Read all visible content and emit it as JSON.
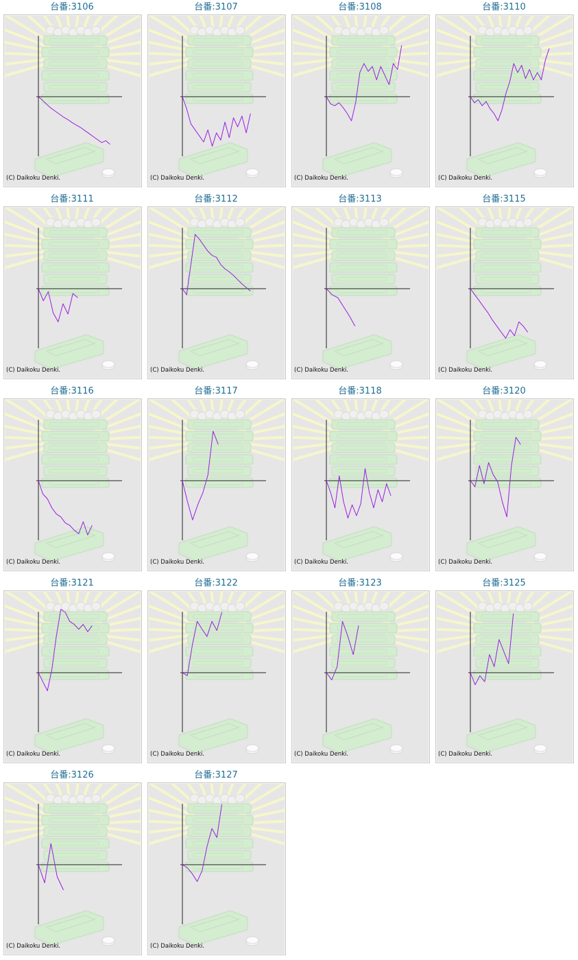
{
  "page": {
    "title_prefix": "台番:",
    "copyright": "(C) Daikoku Denki."
  },
  "colors": {
    "title_link": "#1f6d94",
    "series_line": "#9a1ee0",
    "panel_background": "#e6e6e6",
    "watermark_green": "#d4ecd0",
    "sunburst_yellow": "#f6f6cc",
    "axis_line": "#222222"
  },
  "icons": [
    "coin-stack-watermark-icon",
    "medal-tray-watermark-icon",
    "sunburst-watermark-icon"
  ],
  "chart_data": [
    {
      "type": "line",
      "machine": "3106",
      "title": "台番:3106",
      "ylim": [
        -1,
        1
      ],
      "grid": false,
      "series": [
        {
          "values": [
            0,
            -0.06,
            -0.13,
            -0.19,
            -0.24,
            -0.29,
            -0.34,
            -0.38,
            -0.43,
            -0.47,
            -0.51,
            -0.56,
            -0.61,
            -0.66,
            -0.71,
            -0.76,
            -0.73,
            -0.79
          ]
        }
      ]
    },
    {
      "type": "line",
      "machine": "3107",
      "title": "台番:3107",
      "ylim": [
        -1,
        1
      ],
      "grid": false,
      "series": [
        {
          "values": [
            0,
            -0.2,
            -0.45,
            -0.55,
            -0.65,
            -0.75,
            -0.55,
            -0.82,
            -0.6,
            -0.72,
            -0.42,
            -0.68,
            -0.35,
            -0.5,
            -0.32,
            -0.6,
            -0.28
          ]
        }
      ]
    },
    {
      "type": "line",
      "machine": "3108",
      "title": "台番:3108",
      "ylim": [
        -1,
        1
      ],
      "grid": false,
      "series": [
        {
          "values": [
            0,
            -0.12,
            -0.15,
            -0.1,
            -0.18,
            -0.28,
            -0.4,
            -0.1,
            0.4,
            0.55,
            0.42,
            0.5,
            0.28,
            0.5,
            0.35,
            0.2,
            0.55,
            0.45,
            0.85
          ]
        }
      ]
    },
    {
      "type": "line",
      "machine": "3110",
      "title": "台番:3110",
      "ylim": [
        -1,
        1
      ],
      "grid": false,
      "series": [
        {
          "values": [
            0,
            -0.1,
            -0.05,
            -0.15,
            -0.08,
            -0.2,
            -0.28,
            -0.4,
            -0.22,
            0.05,
            0.25,
            0.55,
            0.4,
            0.52,
            0.3,
            0.45,
            0.28,
            0.4,
            0.28,
            0.6,
            0.8
          ]
        }
      ]
    },
    {
      "type": "line",
      "machine": "3111",
      "title": "台番:3111",
      "ylim": [
        -1,
        1
      ],
      "grid": false,
      "series": [
        {
          "values": [
            0,
            -0.2,
            -0.05,
            -0.4,
            -0.55,
            -0.25,
            -0.42,
            -0.08,
            -0.15
          ]
        }
      ]
    },
    {
      "type": "line",
      "machine": "3112",
      "title": "台番:3112",
      "ylim": [
        -1,
        1
      ],
      "grid": false,
      "series": [
        {
          "values": [
            0,
            -0.1,
            0.4,
            0.9,
            0.82,
            0.72,
            0.62,
            0.55,
            0.52,
            0.4,
            0.33,
            0.28,
            0.22,
            0.15,
            0.08,
            0.02,
            -0.04
          ]
        }
      ]
    },
    {
      "type": "line",
      "machine": "3113",
      "title": "台番:3113",
      "ylim": [
        -1,
        1
      ],
      "grid": false,
      "series": [
        {
          "values": [
            0,
            -0.1,
            -0.15,
            -0.3,
            -0.45,
            -0.62
          ]
        }
      ]
    },
    {
      "type": "line",
      "machine": "3115",
      "title": "台番:3115",
      "ylim": [
        -1,
        1
      ],
      "grid": false,
      "series": [
        {
          "values": [
            0,
            -0.1,
            -0.2,
            -0.3,
            -0.4,
            -0.52,
            -0.62,
            -0.72,
            -0.82,
            -0.68,
            -0.78,
            -0.55,
            -0.62,
            -0.72
          ]
        }
      ]
    },
    {
      "type": "line",
      "machine": "3116",
      "title": "台番:3116",
      "ylim": [
        -1,
        1
      ],
      "grid": false,
      "series": [
        {
          "values": [
            0,
            -0.22,
            -0.3,
            -0.45,
            -0.55,
            -0.6,
            -0.7,
            -0.74,
            -0.82,
            -0.88,
            -0.68,
            -0.9,
            -0.74
          ]
        }
      ]
    },
    {
      "type": "line",
      "machine": "3117",
      "title": "台番:3117",
      "ylim": [
        -1,
        1
      ],
      "grid": false,
      "series": [
        {
          "values": [
            0,
            -0.35,
            -0.65,
            -0.4,
            -0.2,
            0.1,
            0.82,
            0.6
          ]
        }
      ]
    },
    {
      "type": "line",
      "machine": "3118",
      "title": "台番:3118",
      "ylim": [
        -1,
        1
      ],
      "grid": false,
      "series": [
        {
          "values": [
            0,
            -0.2,
            -0.45,
            0.08,
            -0.35,
            -0.62,
            -0.4,
            -0.58,
            -0.38,
            0.2,
            -0.2,
            -0.45,
            -0.15,
            -0.35,
            -0.05,
            -0.25
          ]
        }
      ]
    },
    {
      "type": "line",
      "machine": "3120",
      "title": "台番:3120",
      "ylim": [
        -1,
        1
      ],
      "grid": false,
      "series": [
        {
          "values": [
            0,
            -0.1,
            0.25,
            -0.05,
            0.3,
            0.1,
            -0.02,
            -0.35,
            -0.6,
            0.25,
            0.72,
            0.6
          ]
        }
      ]
    },
    {
      "type": "line",
      "machine": "3121",
      "title": "台番:3121",
      "ylim": [
        -1,
        1
      ],
      "grid": false,
      "series": [
        {
          "values": [
            0,
            -0.15,
            -0.3,
            0.05,
            0.6,
            1.05,
            1.0,
            0.85,
            0.8,
            0.72,
            0.8,
            0.68,
            0.78
          ]
        }
      ]
    },
    {
      "type": "line",
      "machine": "3122",
      "title": "台番:3122",
      "ylim": [
        -1,
        1
      ],
      "grid": false,
      "series": [
        {
          "values": [
            0,
            -0.05,
            0.45,
            0.85,
            0.72,
            0.6,
            0.85,
            0.7,
            1.0
          ]
        }
      ]
    },
    {
      "type": "line",
      "machine": "3123",
      "title": "台番:3123",
      "ylim": [
        -1,
        1
      ],
      "grid": false,
      "series": [
        {
          "values": [
            0,
            -0.12,
            0.1,
            0.85,
            0.6,
            0.3,
            0.78
          ]
        }
      ]
    },
    {
      "type": "line",
      "machine": "3125",
      "title": "台番:3125",
      "ylim": [
        -1,
        1
      ],
      "grid": false,
      "series": [
        {
          "values": [
            0,
            -0.2,
            -0.05,
            -0.15,
            0.3,
            0.1,
            0.55,
            0.35,
            0.15,
            0.98
          ]
        }
      ]
    },
    {
      "type": "line",
      "machine": "3126",
      "title": "台番:3126",
      "ylim": [
        -1,
        1
      ],
      "grid": false,
      "series": [
        {
          "values": [
            0,
            -0.3,
            0.35,
            -0.2,
            -0.42
          ]
        }
      ]
    },
    {
      "type": "line",
      "machine": "3127",
      "title": "台番:3127",
      "ylim": [
        -1,
        1
      ],
      "grid": false,
      "series": [
        {
          "values": [
            0,
            -0.05,
            -0.15,
            -0.28,
            -0.1,
            0.3,
            0.6,
            0.45,
            1.0
          ]
        }
      ]
    }
  ]
}
